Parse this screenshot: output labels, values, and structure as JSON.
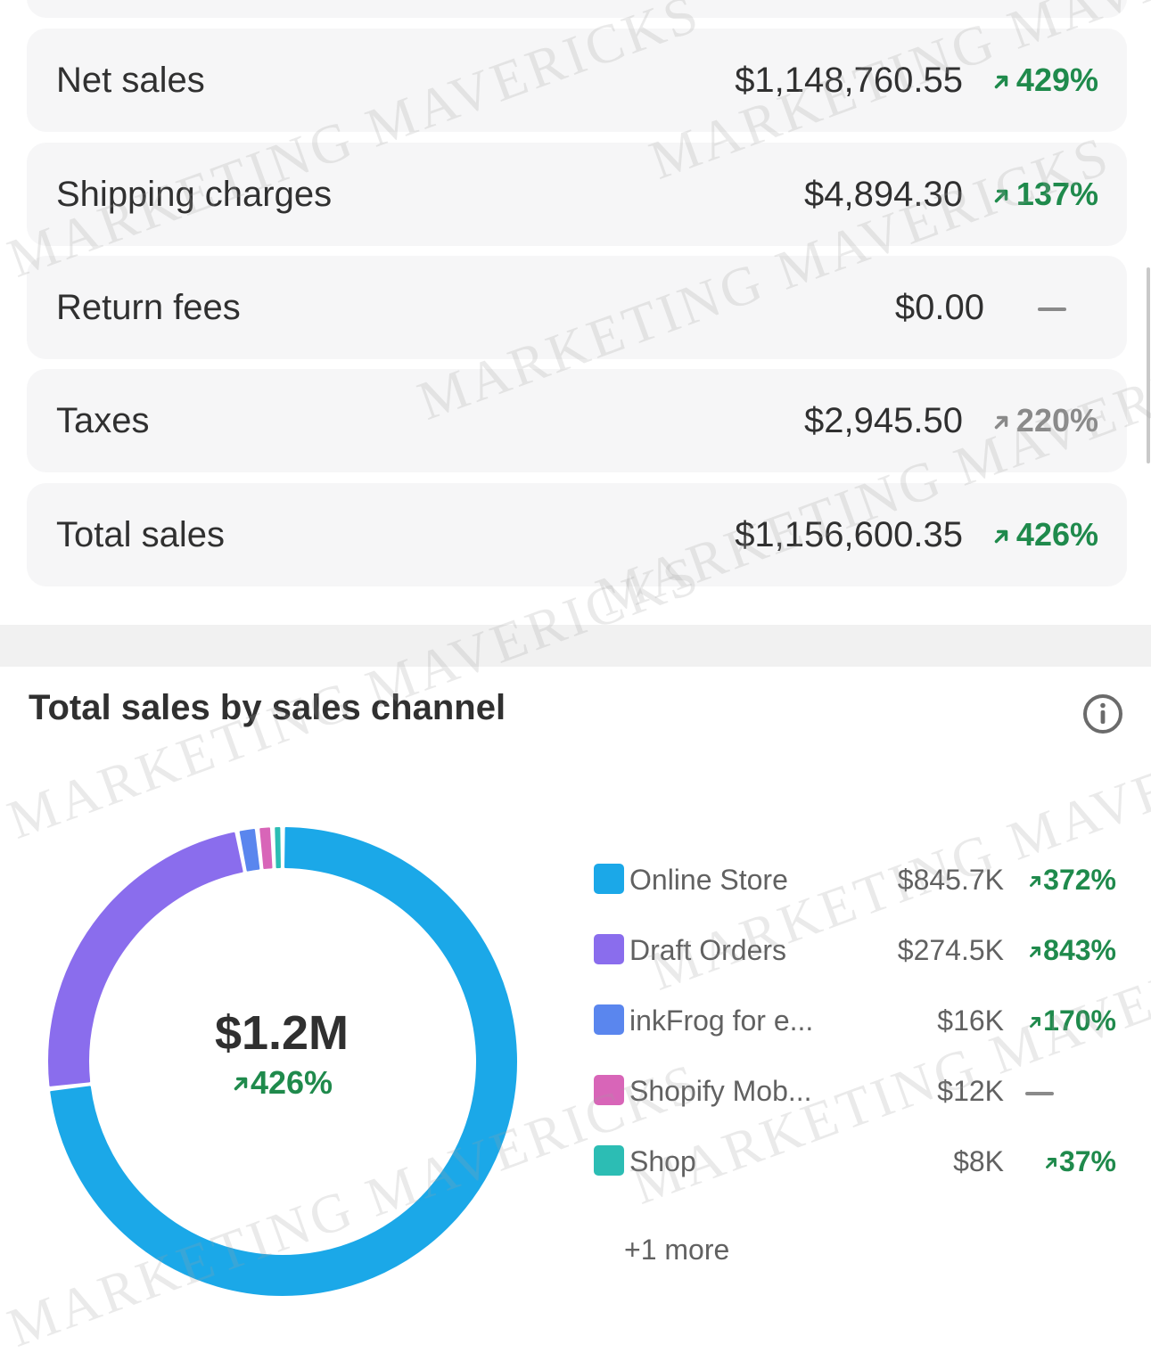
{
  "metrics": [
    {
      "label": "Net sales",
      "value": "$1,148,760.55",
      "change": "429%",
      "trend": "up",
      "color": "#1f8a4c"
    },
    {
      "label": "Shipping charges",
      "value": "$4,894.30",
      "change": "137%",
      "trend": "up",
      "color": "#1f8a4c"
    },
    {
      "label": "Return fees",
      "value": "$0.00",
      "change": "",
      "trend": "none",
      "color": "#8a8a8a"
    },
    {
      "label": "Taxes",
      "value": "$2,945.50",
      "change": "220%",
      "trend": "up",
      "color": "#8a8a8a"
    },
    {
      "label": "Total sales",
      "value": "$1,156,600.35",
      "change": "426%",
      "trend": "up",
      "color": "#1f8a4c"
    }
  ],
  "channel_section": {
    "title": "Total sales by sales channel",
    "info_icon": "info-icon",
    "center_value": "$1.2M",
    "center_change": "426%",
    "more_label": "+1 more"
  },
  "watermark": "MARKETING MAVERICKS",
  "colors": {
    "positive": "#1f8a4c",
    "neutral": "#8a8a8a",
    "card_bg": "#f6f6f7"
  },
  "chart_data": {
    "type": "pie",
    "style": "donut",
    "title": "Total sales by sales channel",
    "total_label": "$1.2M",
    "total_change": "426%",
    "series": [
      {
        "name": "Online Store",
        "label": "Online Store",
        "value": 845.7,
        "display": "$845.7K",
        "change": "372%",
        "trend": "up",
        "color": "#1ba8e8"
      },
      {
        "name": "Draft Orders",
        "label": "Draft Orders",
        "value": 274.5,
        "display": "$274.5K",
        "change": "843%",
        "trend": "up",
        "color": "#8a6ded"
      },
      {
        "name": "inkFrog for e...",
        "label": "inkFrog for e...",
        "value": 16,
        "display": "$16K",
        "change": "170%",
        "trend": "up",
        "color": "#5a86ee"
      },
      {
        "name": "Shopify Mob...",
        "label": "Shopify Mob...",
        "value": 12,
        "display": "$12K",
        "change": "",
        "trend": "none",
        "color": "#d865b8"
      },
      {
        "name": "Shop",
        "label": "Shop",
        "value": 8,
        "display": "$8K",
        "change": "37%",
        "trend": "up",
        "color": "#2cbdb4"
      }
    ],
    "legend_position": "right",
    "units": "thousands of USD"
  }
}
